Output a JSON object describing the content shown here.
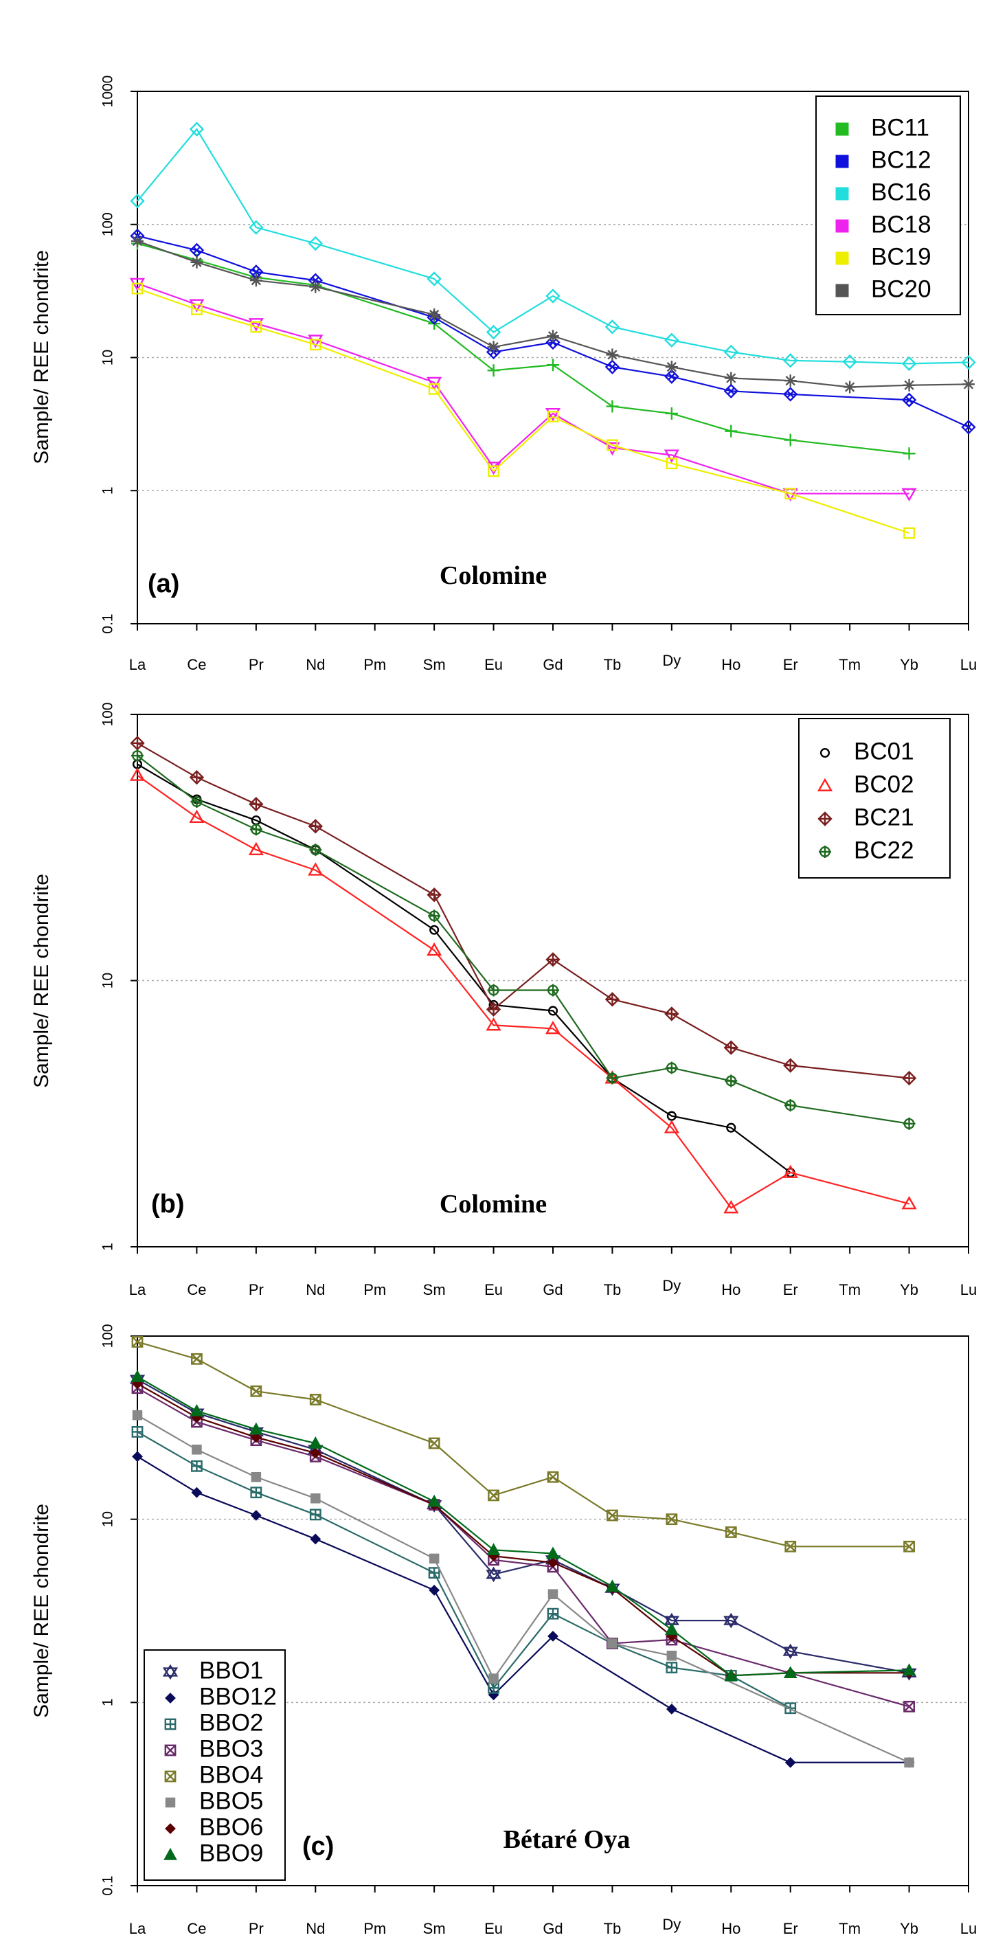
{
  "chart_data": [
    {
      "type": "line",
      "panel_label": "(a)",
      "title": "Colomine",
      "ylabel": "Sample/ REE chondrite",
      "yscale": "log",
      "ylim": [
        0.1,
        1000
      ],
      "yticks": [
        "0.1",
        "1",
        "10",
        "100",
        "1000"
      ],
      "categories": [
        "La",
        "Ce",
        "Pr",
        "Nd",
        "Pm",
        "Sm",
        "Eu",
        "Gd",
        "Tb",
        "Dy",
        "Ho",
        "Er",
        "Tm",
        "Yb",
        "Lu"
      ],
      "legend_position": "top-right",
      "series": [
        {
          "name": "BC11",
          "color": "#22bb22",
          "marker": "plus",
          "legend_marker": "square",
          "values": [
            72,
            54,
            40,
            35,
            null,
            18,
            8,
            8.8,
            4.3,
            3.8,
            2.8,
            2.4,
            null,
            1.9,
            null
          ]
        },
        {
          "name": "BC12",
          "color": "#1010dd",
          "marker": "diamondx",
          "legend_marker": "square",
          "values": [
            82,
            64,
            44,
            38,
            null,
            20,
            11,
            13,
            8.5,
            7.2,
            5.6,
            5.3,
            null,
            4.8,
            3
          ]
        },
        {
          "name": "BC16",
          "color": "#22dddd",
          "marker": "diamond",
          "legend_marker": "square",
          "values": [
            150,
            520,
            95,
            72,
            null,
            39,
            15.5,
            29,
            17,
            13.5,
            11,
            9.5,
            9.3,
            9,
            9.2
          ]
        },
        {
          "name": "BC18",
          "color": "#ee22ee",
          "marker": "tridown",
          "legend_marker": "square",
          "values": [
            36,
            25,
            18,
            13.5,
            null,
            6.5,
            1.5,
            3.8,
            2.1,
            1.85,
            null,
            0.95,
            null,
            0.95,
            null
          ]
        },
        {
          "name": "BC19",
          "color": "#eeee00",
          "marker": "square",
          "legend_marker": "square",
          "values": [
            33,
            23,
            17,
            12.5,
            null,
            5.8,
            1.4,
            3.6,
            2.2,
            1.6,
            null,
            0.95,
            null,
            0.48,
            null
          ]
        },
        {
          "name": "BC20",
          "color": "#555555",
          "marker": "asterisk",
          "legend_marker": "square",
          "values": [
            75,
            52,
            38,
            34,
            null,
            21,
            12,
            14.5,
            10.5,
            8.5,
            7,
            6.7,
            6,
            6.2,
            6.3
          ]
        }
      ]
    },
    {
      "type": "line",
      "panel_label": "(b)",
      "title": "Colomine",
      "ylabel": "Sample/ REE chondrite",
      "yscale": "log",
      "ylim": [
        1,
        100
      ],
      "yticks": [
        "1",
        "10",
        "100"
      ],
      "categories": [
        "La",
        "Ce",
        "Pr",
        "Nd",
        "Pm",
        "Sm",
        "Eu",
        "Gd",
        "Tb",
        "Dy",
        "Ho",
        "Er",
        "Tm",
        "Yb",
        "Lu"
      ],
      "legend_position": "top-right",
      "series": [
        {
          "name": "BC01",
          "color": "#000000",
          "marker": "circle",
          "legend_marker": "circle",
          "values": [
            65,
            48,
            40,
            31,
            null,
            15.5,
            8.1,
            7.7,
            4.3,
            3.1,
            2.8,
            1.9,
            null,
            null,
            null
          ]
        },
        {
          "name": "BC02",
          "color": "#ff2222",
          "marker": "triangle",
          "legend_marker": "triangle",
          "values": [
            59,
            41,
            31,
            26,
            null,
            13,
            6.8,
            6.6,
            4.3,
            2.8,
            1.4,
            1.9,
            null,
            1.45,
            null
          ]
        },
        {
          "name": "BC21",
          "color": "#7a1f1f",
          "marker": "diamondplus",
          "legend_marker": "diamondplus",
          "values": [
            78,
            58,
            46,
            38,
            null,
            21,
            7.8,
            12,
            8.5,
            7.5,
            5.6,
            4.8,
            null,
            4.3,
            null
          ]
        },
        {
          "name": "BC22",
          "color": "#1f6a1f",
          "marker": "circleplus",
          "legend_marker": "circleplus",
          "values": [
            70,
            47,
            37,
            31,
            null,
            17.5,
            9.2,
            9.2,
            4.3,
            4.7,
            4.2,
            3.4,
            null,
            2.9,
            null
          ]
        }
      ]
    },
    {
      "type": "line",
      "panel_label": "(c)",
      "title": "Bétaré Oya",
      "ylabel": "Sample/ REE chondrite",
      "yscale": "log",
      "ylim": [
        0.1,
        100
      ],
      "yticks": [
        "0.1",
        "1",
        "10",
        "100"
      ],
      "categories": [
        "La",
        "Ce",
        "Pr",
        "Nd",
        "Pm",
        "Sm",
        "Eu",
        "Gd",
        "Tb",
        "Dy",
        "Ho",
        "Er",
        "Tm",
        "Yb",
        "Lu"
      ],
      "legend_position": "bottom-left",
      "series": [
        {
          "name": "BBO1",
          "color": "#2a2a6a",
          "marker": "star",
          "legend_marker": "star",
          "values": [
            58,
            38,
            30,
            24,
            null,
            12,
            5,
            6,
            4.2,
            2.8,
            2.8,
            1.9,
            null,
            1.45,
            null
          ]
        },
        {
          "name": "BBO12",
          "color": "#0a0a5a",
          "marker": "smalldiamond",
          "legend_marker": "smalldiamond",
          "values": [
            22,
            14,
            10.5,
            7.8,
            null,
            4.1,
            1.1,
            2.3,
            null,
            0.92,
            null,
            0.47,
            null,
            0.47,
            null
          ]
        },
        {
          "name": "BBO2",
          "color": "#2a6a6a",
          "marker": "squareplus",
          "legend_marker": "squareplus",
          "values": [
            30,
            19.5,
            14,
            10.6,
            null,
            5.1,
            1.2,
            3.05,
            2.1,
            1.55,
            1.4,
            0.93,
            null,
            null,
            null
          ]
        },
        {
          "name": "BBO3",
          "color": "#6a2a6a",
          "marker": "squarex",
          "legend_marker": "squarex",
          "values": [
            52,
            34,
            27,
            22,
            null,
            12,
            6,
            5.5,
            2.1,
            2.2,
            null,
            null,
            null,
            0.95,
            null
          ]
        },
        {
          "name": "BBO4",
          "color": "#7a7a2a",
          "marker": "squarex",
          "legend_marker": "squarex",
          "values": [
            93,
            75,
            50,
            45,
            null,
            26,
            13.5,
            17,
            10.5,
            10,
            8.5,
            7.1,
            null,
            7.1,
            null
          ]
        },
        {
          "name": "BBO5",
          "color": "#888888",
          "marker": "filledsquare",
          "legend_marker": "filledsquare",
          "values": [
            37,
            24,
            17,
            13,
            null,
            6.1,
            1.35,
            3.9,
            2.1,
            1.8,
            null,
            null,
            null,
            0.47,
            null
          ]
        },
        {
          "name": "BBO6",
          "color": "#5a0000",
          "marker": "smalldiamond",
          "legend_marker": "smalldiamond",
          "values": [
            55,
            36,
            28,
            23,
            null,
            12,
            6.3,
            5.8,
            4.2,
            2.3,
            1.4,
            1.45,
            null,
            1.45,
            null
          ]
        },
        {
          "name": "BBO9",
          "color": "#006a1a",
          "marker": "filledtriangle",
          "legend_marker": "filledtriangle",
          "values": [
            60,
            39,
            31,
            26,
            null,
            12.5,
            6.8,
            6.5,
            4.3,
            2.5,
            1.4,
            1.45,
            null,
            1.5,
            null
          ]
        }
      ]
    }
  ]
}
